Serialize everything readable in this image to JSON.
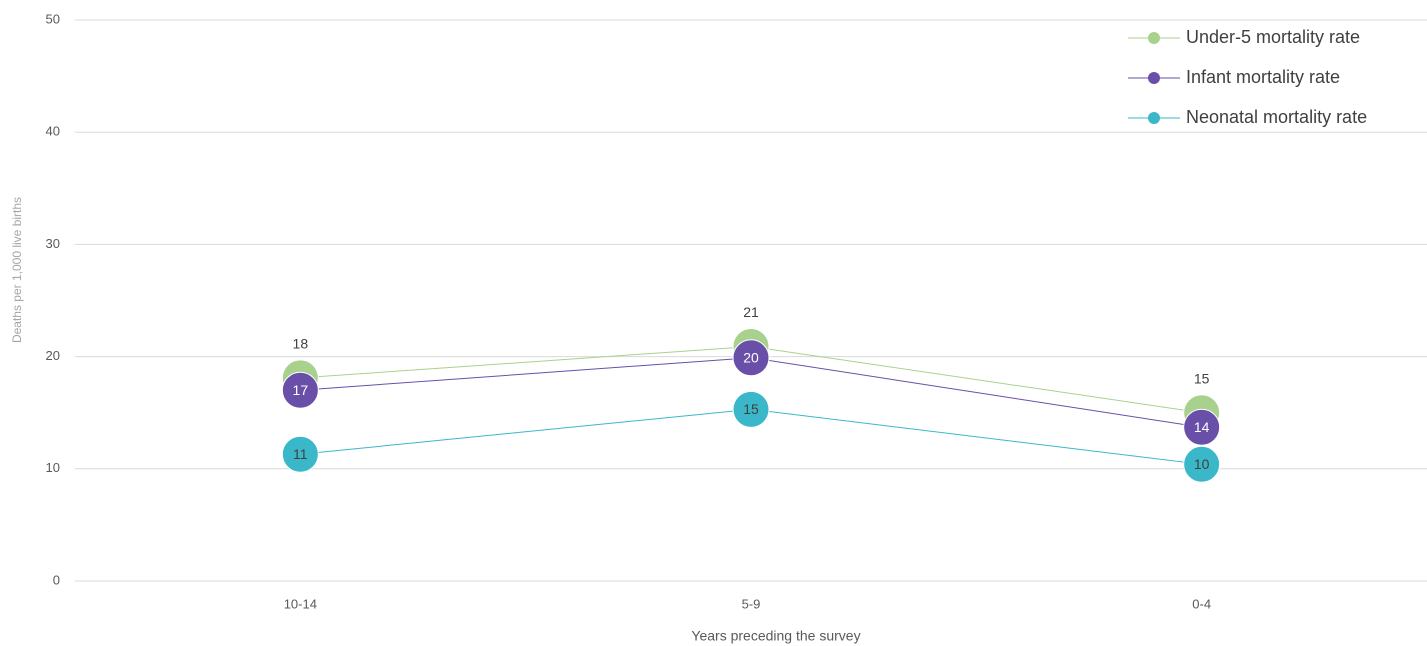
{
  "chart_data": {
    "type": "line",
    "categories": [
      "10-14",
      "5-9",
      "0-4"
    ],
    "series": [
      {
        "name": "Under-5 mortality rate",
        "color": "#a9d18e",
        "values": [
          18.1,
          20.9,
          15.0
        ],
        "value_labels": [
          "18",
          "21",
          "15"
        ]
      },
      {
        "name": "Infant mortality rate",
        "color": "#6a4fa8",
        "values": [
          17.0,
          19.9,
          13.7
        ],
        "value_labels": [
          "17",
          "20",
          "14"
        ]
      },
      {
        "name": "Neonatal mortality rate",
        "color": "#3ab7c8",
        "values": [
          11.3,
          15.3,
          10.4
        ],
        "value_labels": [
          "11",
          "15",
          "10"
        ]
      }
    ],
    "ylim": [
      0,
      50
    ],
    "yticks": [
      0,
      10,
      20,
      30,
      40,
      50
    ],
    "grid": true,
    "x_label": "Years preceding the survey",
    "y_label": "Deaths per 1,000 live births",
    "legend": "top-right"
  }
}
